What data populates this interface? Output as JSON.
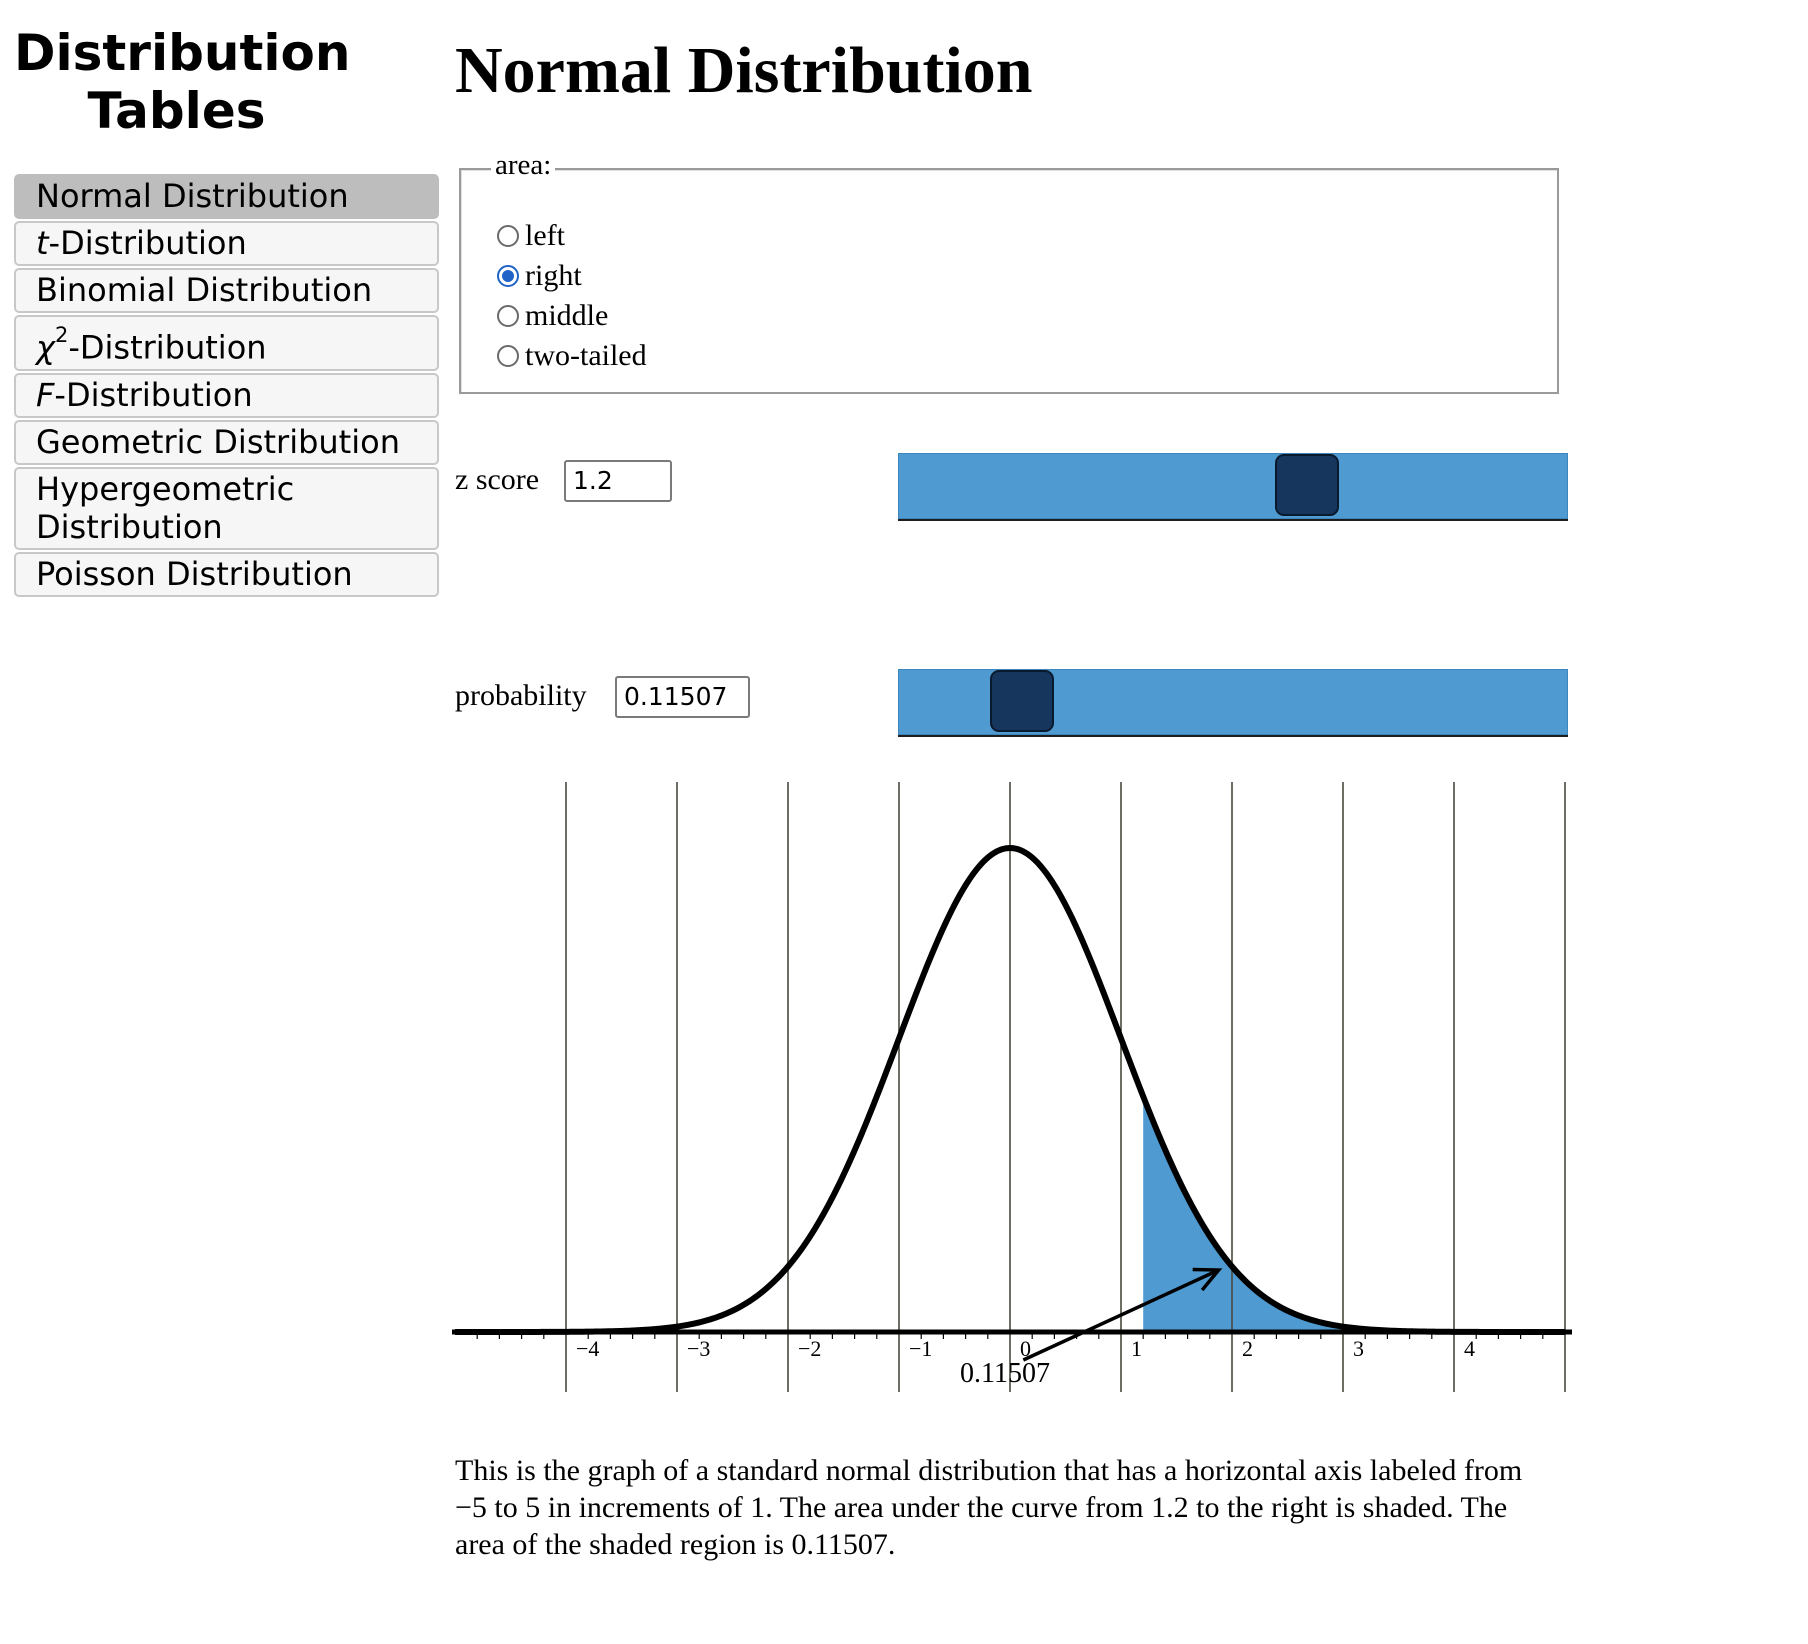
{
  "sidebar": {
    "title_line1": "Distribution",
    "title_line2": "Tables",
    "items": [
      {
        "label": "Normal Distribution",
        "active": true
      },
      {
        "label_italic": "t",
        "label_rest": "-Distribution"
      },
      {
        "label": "Binomial Distribution"
      },
      {
        "label_italic": "χ",
        "sup": "2",
        "label_rest": "-Distribution"
      },
      {
        "label_italic": "F",
        "label_rest": "-Distribution"
      },
      {
        "label": "Geometric Distribution"
      },
      {
        "label_line1": "Hypergeometric",
        "label_line2": "Distribution"
      },
      {
        "label": "Poisson Distribution"
      }
    ]
  },
  "main": {
    "title": "Normal Distribution",
    "area": {
      "legend": "area:",
      "options": [
        "left",
        "right",
        "middle",
        "two-tailed"
      ],
      "selected": "right"
    },
    "z_score": {
      "label": "z score",
      "value": "1.2"
    },
    "probability": {
      "label": "probability",
      "value": "0.11507"
    },
    "sliders": {
      "z_score_level": 0.62,
      "probability_level": 0.15
    },
    "description": "This is the graph of a standard normal distribution that has a horizontal axis labeled from −5 to 5 in increments of 1. The area under the curve from 1.2 to the right is shaded. The area of the shaded region is 0.11507."
  },
  "colors": {
    "shade": "#4f9bd1",
    "slider_track": "#4f9bd1",
    "slider_handle": "#17365d",
    "radio_checked": "#1f63c7"
  },
  "chart_data": {
    "type": "area",
    "distribution": "standard normal",
    "xlim": [
      -5,
      5
    ],
    "tick_labels": [
      "−4",
      "−3",
      "−2",
      "−1",
      "0",
      "1",
      "2",
      "3",
      "4"
    ],
    "shaded_from": 1.2,
    "shaded_side": "right",
    "area_label": "0.11507",
    "grid": true
  }
}
